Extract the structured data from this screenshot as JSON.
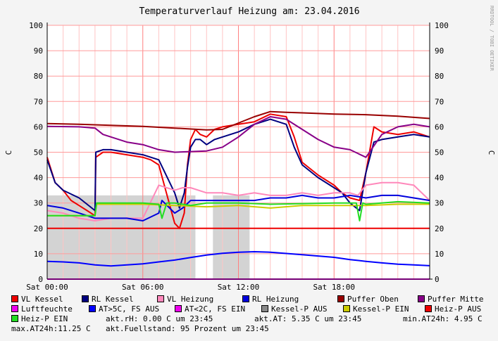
{
  "chart_data": {
    "type": "line",
    "title": "Temperaturverlauf Heizung am: 23.04.2016",
    "ylabel_left": "C",
    "ylabel_right": "C",
    "watermark": "RRDTOOL / TOBI OETIKER",
    "ylim": [
      0,
      100
    ],
    "yticks": [
      0,
      10,
      20,
      30,
      40,
      50,
      60,
      70,
      80,
      90,
      100
    ],
    "xlim": [
      0,
      24
    ],
    "xticks": [
      {
        "x": 0,
        "label": "Sat 00:00"
      },
      {
        "x": 6,
        "label": "Sat 06:00"
      },
      {
        "x": 12,
        "label": "Sat 12:00"
      },
      {
        "x": 18,
        "label": "Sat 18:00"
      }
    ],
    "grid": true,
    "shaded_regions": [
      {
        "name": "Kessel-P AUS",
        "color": "#d3d3d3",
        "from": 0,
        "to": 9.3,
        "y": 33
      },
      {
        "name": "Kessel-P AUS",
        "color": "#d3d3d3",
        "from": 10.4,
        "to": 12.7,
        "y": 33
      }
    ],
    "series": [
      {
        "name": "VL Kessel",
        "color": "#ee0000",
        "x": [
          0,
          0.5,
          1,
          1.5,
          2,
          2.5,
          3,
          3.05,
          3.5,
          4,
          5,
          6,
          6.5,
          7,
          8,
          8.3,
          8.6,
          8.8,
          9,
          9.3,
          9.6,
          10,
          10.5,
          11,
          12,
          13,
          14,
          15,
          15.5,
          16,
          17,
          18,
          18.5,
          19,
          19.6,
          20,
          20.5,
          21,
          22,
          23,
          24
        ],
        "values": [
          48,
          38,
          35,
          31,
          29,
          27,
          25,
          48,
          50,
          50,
          49,
          48,
          47,
          45,
          22,
          20,
          26,
          45,
          55,
          59,
          57,
          56,
          59,
          60,
          61,
          62,
          65,
          64,
          56,
          46,
          41,
          37,
          34,
          32,
          31,
          42,
          60,
          58,
          57,
          58,
          56
        ]
      },
      {
        "name": "RL Kessel",
        "color": "#000080",
        "x": [
          0,
          0.5,
          1,
          2,
          3,
          3.05,
          3.5,
          4,
          5,
          6,
          6.5,
          7,
          8,
          8.3,
          8.6,
          8.8,
          9,
          9.3,
          9.6,
          10,
          10.5,
          11,
          12,
          13,
          14,
          15,
          15.5,
          16,
          17,
          18,
          18.5,
          19,
          19.6,
          20,
          20.5,
          21,
          22,
          23,
          24
        ],
        "values": [
          47,
          38,
          35,
          32,
          27,
          50,
          51,
          51,
          50,
          49,
          48,
          47,
          34,
          28,
          34,
          44,
          52,
          55,
          55,
          53,
          55,
          56,
          58,
          61,
          63,
          61,
          52,
          45,
          40,
          36,
          34,
          30,
          27,
          42,
          54,
          55,
          56,
          57,
          56
        ]
      },
      {
        "name": "VL Heizung",
        "color": "#ff88bb",
        "x": [
          0,
          1,
          2,
          3,
          4,
          5,
          6,
          7,
          7.5,
          8,
          8.5,
          9,
          10,
          11,
          12,
          13,
          14,
          15,
          16,
          17,
          18,
          19,
          19.5,
          20,
          21,
          22,
          23,
          24
        ],
        "values": [
          27,
          26,
          24,
          23,
          24,
          24,
          24,
          37,
          36,
          35,
          36,
          36,
          34,
          34,
          33,
          34,
          33,
          33,
          34,
          33,
          34,
          34,
          33,
          37,
          38,
          38,
          37,
          31
        ]
      },
      {
        "name": "RL Heizung",
        "color": "#0000dd",
        "x": [
          0,
          1,
          2,
          3,
          4,
          5,
          6,
          7,
          7.2,
          8,
          8.5,
          9,
          10,
          11,
          12,
          13,
          14,
          15,
          16,
          17,
          18,
          19,
          20,
          21,
          22,
          23,
          24
        ],
        "values": [
          29,
          28,
          26,
          24,
          24,
          24,
          23,
          26,
          31,
          26,
          28,
          31,
          31,
          31,
          31,
          31,
          32,
          32,
          33,
          32,
          32,
          33,
          32,
          33,
          33,
          32,
          31
        ]
      },
      {
        "name": "Puffer Oben",
        "color": "#990000",
        "x": [
          0,
          2,
          4,
          6,
          8,
          10,
          11,
          12,
          13,
          14,
          15,
          16,
          18,
          20,
          22,
          24
        ],
        "values": [
          61.3,
          61,
          60.6,
          60.2,
          59.5,
          58.8,
          59,
          61.5,
          64,
          66,
          65.7,
          65.5,
          65,
          64.8,
          64.2,
          63.3
        ]
      },
      {
        "name": "Puffer Mitte",
        "color": "#880088",
        "x": [
          0,
          2,
          3,
          3.5,
          4,
          5,
          6,
          7,
          8,
          10,
          11,
          12,
          13,
          14,
          15,
          16,
          17,
          18,
          19,
          20,
          21,
          22,
          23,
          24
        ],
        "values": [
          60.2,
          60,
          59.5,
          57,
          56,
          54,
          53,
          51,
          50,
          50.5,
          52,
          56,
          61,
          64,
          63,
          59,
          55,
          52,
          51,
          48,
          57,
          60,
          61,
          60
        ]
      },
      {
        "name": "Luftfeuchte",
        "color": "#ee00ee",
        "x": [
          0,
          24
        ],
        "values": [
          0,
          0
        ]
      },
      {
        "name": "AT>5C, FS AUS",
        "color": "#0000ff",
        "x": [
          0,
          1,
          2,
          3,
          4,
          5,
          6,
          7,
          8,
          9,
          10,
          11,
          12,
          13,
          14,
          15,
          16,
          17,
          18,
          19,
          20,
          21,
          22,
          23,
          24
        ],
        "values": [
          7,
          6.8,
          6.4,
          5.6,
          5.2,
          5.6,
          6,
          6.8,
          7.5,
          8.5,
          9.5,
          10.2,
          10.6,
          10.8,
          10.6,
          10.1,
          9.6,
          9.1,
          8.6,
          7.7,
          7,
          6.4,
          5.9,
          5.6,
          5.3
        ]
      },
      {
        "name": "AT<2C, FS EIN",
        "color": "#ee00ee",
        "x": [],
        "values": []
      },
      {
        "name": "Kessel-P AUS",
        "color": "#888888",
        "x": [],
        "values": []
      },
      {
        "name": "Kessel-P EIN",
        "color": "#cccc00",
        "x": [
          0,
          3,
          3.1,
          6,
          8,
          10,
          12,
          14,
          16,
          18,
          20,
          22,
          24
        ],
        "values": [
          25,
          25,
          29.5,
          29.5,
          29,
          28.5,
          29,
          28,
          29,
          29,
          29,
          29.5,
          29.5
        ]
      },
      {
        "name": "Heiz-P AUS",
        "color": "#ee0000",
        "x": [
          0,
          3.05,
          3.1,
          24
        ],
        "values": [
          20,
          20,
          20,
          20
        ]
      },
      {
        "name": "Heiz-P EIN",
        "color": "#22dd22",
        "x": [
          0,
          3,
          3.1,
          6,
          7,
          7.2,
          7.5,
          8,
          9,
          10,
          12,
          14,
          18,
          19.4,
          19.6,
          19.8,
          20,
          22,
          24
        ],
        "values": [
          25,
          25,
          30,
          30,
          29.5,
          24,
          30,
          30,
          29,
          30,
          30,
          29.5,
          30,
          30,
          23,
          30,
          29.5,
          30.5,
          30
        ]
      }
    ]
  },
  "legend": [
    {
      "label": "VL Kessel",
      "color": "#ee0000"
    },
    {
      "label": "RL Kessel",
      "color": "#000080"
    },
    {
      "label": "VL Heizung",
      "color": "#ff88bb"
    },
    {
      "label": "RL Heizung",
      "color": "#0000dd"
    },
    {
      "label": "Puffer Oben",
      "color": "#990000"
    },
    {
      "label": "Puffer Mitte",
      "color": "#880088"
    },
    {
      "label": "Luftfeuchte",
      "color": "#ee00ee"
    },
    {
      "label": "AT>5C, FS AUS",
      "color": "#0000ff"
    },
    {
      "label": "AT<2C, FS EIN",
      "color": "#ee00ee"
    },
    {
      "label": "Kessel-P AUS",
      "color": "#888888"
    },
    {
      "label": "Kessel-P EIN",
      "color": "#cccc00"
    },
    {
      "label": "Heiz-P AUS",
      "color": "#ee0000"
    },
    {
      "label": "Heiz-P EIN",
      "color": "#22dd22"
    }
  ],
  "info": {
    "rh": "akt.rH: 0.00 C um 23:45",
    "at": "akt.AT: 5.35 C um 23:45",
    "min_at": "min.AT24h: 4.95 C",
    "max_at": "max.AT24h:11.25 C",
    "fuellstand": "akt.Fuellstand:   95 Prozent um 23:45"
  }
}
